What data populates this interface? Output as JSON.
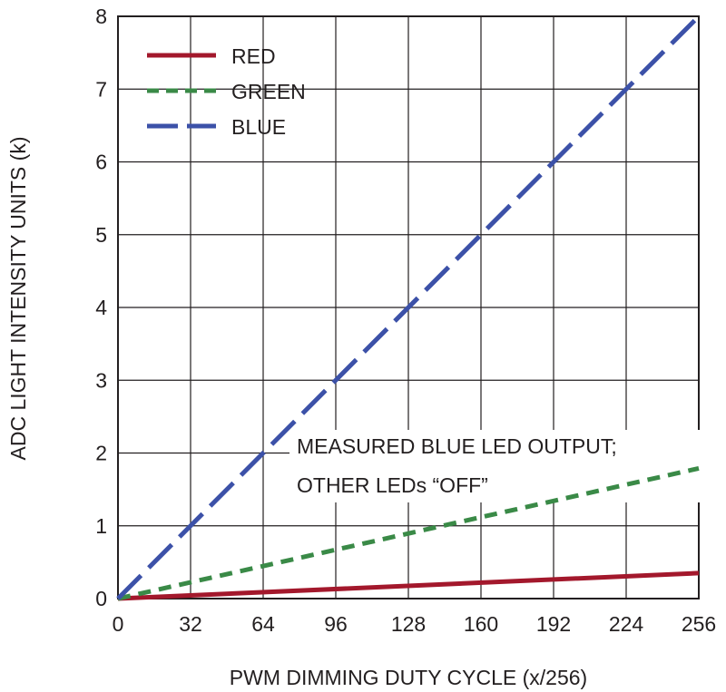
{
  "chart_data": {
    "type": "line",
    "title": "",
    "xlabel": "PWM DIMMING DUTY CYCLE (x/256)",
    "ylabel": "ADC LIGHT INTENSITY UNITS (k)",
    "xlim": [
      0,
      256
    ],
    "ylim": [
      0,
      8
    ],
    "x_ticks": [
      0,
      32,
      64,
      96,
      128,
      160,
      192,
      224,
      256
    ],
    "y_ticks": [
      0,
      1,
      2,
      3,
      4,
      5,
      6,
      7,
      8
    ],
    "x_tick_labels": [
      "0",
      "32",
      "64",
      "96",
      "128",
      "160",
      "192",
      "224",
      "256"
    ],
    "y_tick_labels": [
      "0",
      "1",
      "2",
      "3",
      "4",
      "5",
      "6",
      "7",
      "8"
    ],
    "grid": true,
    "legend_position": "top-left",
    "series": [
      {
        "name": "RED",
        "color": "#a3182c",
        "style": "solid",
        "x": [
          0,
          256
        ],
        "y": [
          0,
          0.35
        ]
      },
      {
        "name": "GREEN",
        "color": "#3a8a47",
        "style": "dashed",
        "x": [
          0,
          256
        ],
        "y": [
          0,
          1.79
        ]
      },
      {
        "name": "BLUE",
        "color": "#3c51a8",
        "style": "long-dash",
        "x": [
          0,
          256
        ],
        "y": [
          0,
          8
        ]
      }
    ],
    "annotation": {
      "lines": [
        "MEASURED BLUE LED OUTPUT;",
        "OTHER LEDs “OFF”"
      ]
    }
  }
}
